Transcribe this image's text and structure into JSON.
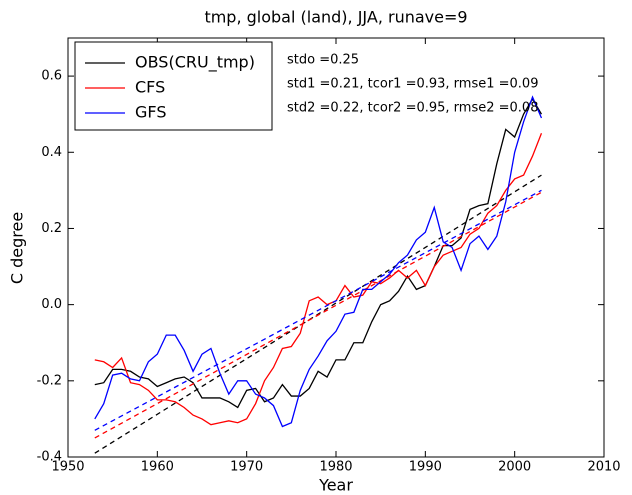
{
  "chart_data": {
    "type": "line",
    "title": "tmp, global (land), JJA, runave=9",
    "xlabel": "Year",
    "ylabel": "C degree",
    "x": [
      1953,
      1954,
      1955,
      1956,
      1957,
      1958,
      1959,
      1960,
      1961,
      1962,
      1963,
      1964,
      1965,
      1966,
      1967,
      1968,
      1969,
      1970,
      1971,
      1972,
      1973,
      1974,
      1975,
      1976,
      1977,
      1978,
      1979,
      1980,
      1981,
      1982,
      1983,
      1984,
      1985,
      1986,
      1987,
      1988,
      1989,
      1990,
      1991,
      1992,
      1993,
      1994,
      1995,
      1996,
      1997,
      1998,
      1999,
      2000,
      2001,
      2002,
      2003
    ],
    "series": [
      {
        "name": "OBS(CRU_tmp)",
        "color": "#000000",
        "trend": [
          -0.39,
          0.34
        ],
        "values": [
          -0.21,
          -0.205,
          -0.17,
          -0.17,
          -0.175,
          -0.19,
          -0.195,
          -0.215,
          -0.205,
          -0.195,
          -0.19,
          -0.205,
          -0.245,
          -0.245,
          -0.245,
          -0.255,
          -0.27,
          -0.225,
          -0.22,
          -0.255,
          -0.245,
          -0.21,
          -0.24,
          -0.24,
          -0.22,
          -0.175,
          -0.19,
          -0.145,
          -0.145,
          -0.1,
          -0.1,
          -0.045,
          0.0,
          0.01,
          0.035,
          0.075,
          0.04,
          0.05,
          0.1,
          0.155,
          0.155,
          0.175,
          0.25,
          0.26,
          0.265,
          0.37,
          0.46,
          0.44,
          0.5,
          0.54,
          0.5
        ]
      },
      {
        "name": "CFS",
        "color": "#ff0000",
        "trend": [
          -0.35,
          0.295
        ],
        "values": [
          -0.145,
          -0.15,
          -0.165,
          -0.14,
          -0.205,
          -0.21,
          -0.225,
          -0.25,
          -0.25,
          -0.255,
          -0.27,
          -0.29,
          -0.3,
          -0.315,
          -0.31,
          -0.305,
          -0.31,
          -0.3,
          -0.26,
          -0.2,
          -0.165,
          -0.115,
          -0.11,
          -0.075,
          0.01,
          0.02,
          0.0,
          0.01,
          0.05,
          0.02,
          0.025,
          0.06,
          0.055,
          0.07,
          0.09,
          0.07,
          0.09,
          0.05,
          0.1,
          0.13,
          0.14,
          0.15,
          0.185,
          0.2,
          0.24,
          0.26,
          0.3,
          0.33,
          0.34,
          0.39,
          0.45
        ]
      },
      {
        "name": "GFS",
        "color": "#0000ff",
        "trend": [
          -0.33,
          0.3
        ],
        "values": [
          -0.3,
          -0.26,
          -0.185,
          -0.18,
          -0.195,
          -0.2,
          -0.15,
          -0.13,
          -0.08,
          -0.08,
          -0.12,
          -0.175,
          -0.13,
          -0.115,
          -0.18,
          -0.235,
          -0.2,
          -0.2,
          -0.235,
          -0.245,
          -0.265,
          -0.32,
          -0.31,
          -0.225,
          -0.17,
          -0.135,
          -0.095,
          -0.07,
          -0.025,
          -0.02,
          0.04,
          0.04,
          0.06,
          0.08,
          0.11,
          0.13,
          0.17,
          0.19,
          0.255,
          0.165,
          0.15,
          0.09,
          0.16,
          0.18,
          0.145,
          0.18,
          0.27,
          0.4,
          0.48,
          0.545,
          0.49
        ]
      }
    ],
    "trend_x": [
      1953,
      2003
    ],
    "annotations": [
      {
        "text": "stdo =0.25",
        "color": "#000000"
      },
      {
        "text": "std1 =0.21, tcor1 =0.93, rmse1 =0.09",
        "color": "#ff0000"
      },
      {
        "text": "std2 =0.22, tcor2 =0.95, rmse2 =0.08",
        "color": "#0000ff"
      }
    ],
    "xlim": [
      1950,
      2010
    ],
    "xticks": [
      1950,
      1960,
      1970,
      1980,
      1990,
      2000,
      2010
    ],
    "ylim": [
      -0.4,
      0.7
    ],
    "yticks": [
      -0.4,
      -0.2,
      {
        "value": 0,
        "label": "0.0"
      },
      0.2,
      0.4,
      0.6
    ],
    "legend": "upper left"
  }
}
